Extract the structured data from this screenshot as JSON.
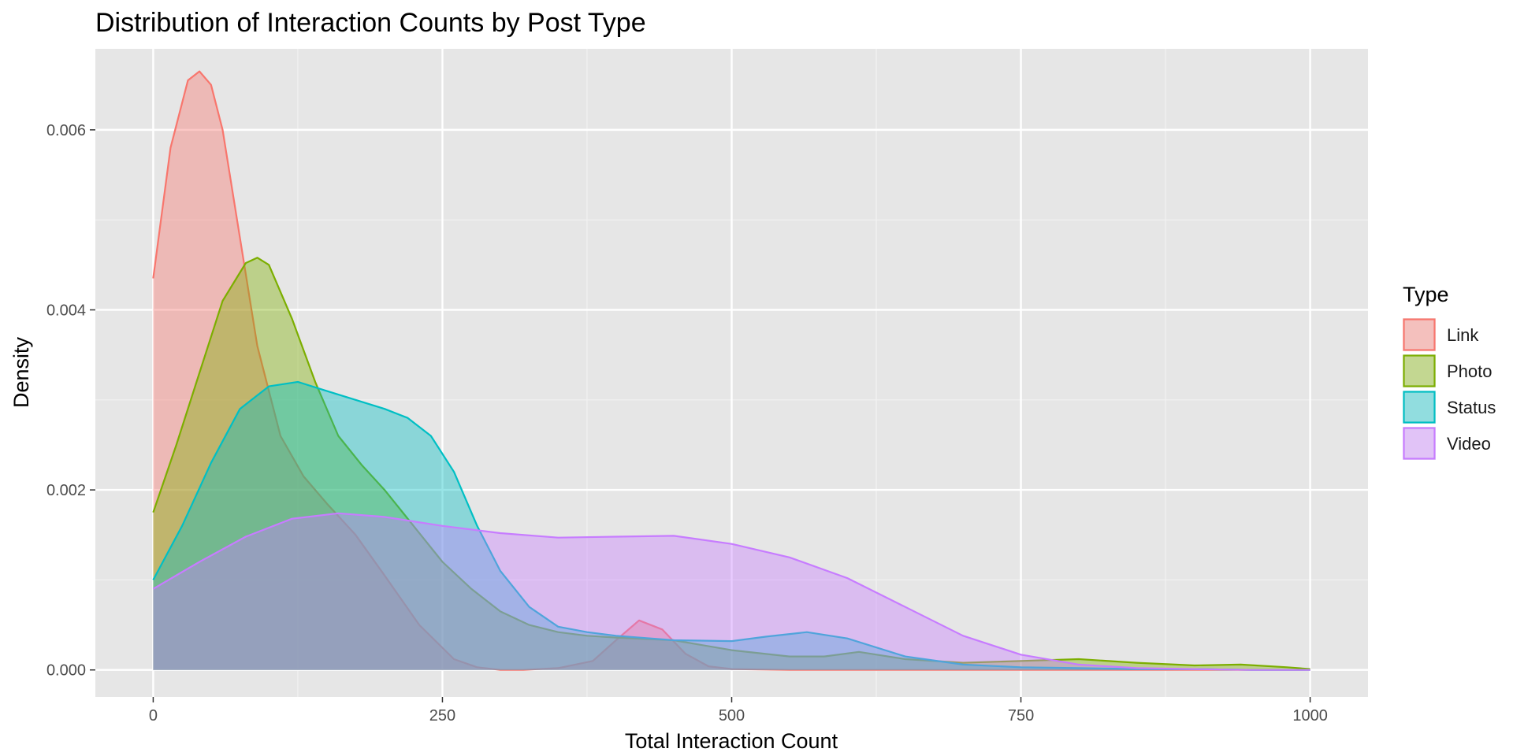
{
  "chart_data": {
    "type": "area",
    "subtype": "density",
    "title": "Distribution of Interaction Counts by Post Type",
    "xlabel": "Total Interaction Count",
    "ylabel": "Density",
    "xlim": [
      -50,
      1050
    ],
    "ylim": [
      -0.0003,
      0.0069
    ],
    "x_ticks": [
      0,
      250,
      500,
      750,
      1000
    ],
    "x_tick_labels": [
      "0",
      "250",
      "500",
      "750",
      "1000"
    ],
    "y_ticks": [
      0,
      0.002,
      0.004,
      0.006
    ],
    "y_tick_labels": [
      "0.000",
      "0.002",
      "0.004",
      "0.006"
    ],
    "grid": true,
    "legend_title": "Type",
    "legend_position": "right",
    "series": [
      {
        "name": "Link",
        "color": "#F8766D",
        "x": [
          0,
          15,
          30,
          40,
          50,
          60,
          75,
          90,
          110,
          130,
          150,
          175,
          200,
          230,
          260,
          280,
          300,
          320,
          350,
          380,
          400,
          420,
          440,
          460,
          480,
          500,
          550,
          600,
          700,
          800,
          900,
          1000
        ],
        "y": [
          0.00435,
          0.0058,
          0.00655,
          0.00665,
          0.0065,
          0.006,
          0.0048,
          0.0036,
          0.0026,
          0.00215,
          0.00185,
          0.0015,
          0.00105,
          0.0005,
          0.00012,
          3e-05,
          0.0,
          0.0,
          2e-05,
          0.0001,
          0.00033,
          0.00055,
          0.00045,
          0.00018,
          4e-05,
          1e-05,
          0.0,
          0.0,
          0.0,
          0.0,
          0.0,
          0.0
        ]
      },
      {
        "name": "Photo",
        "color": "#7CAE00",
        "x": [
          0,
          20,
          40,
          60,
          80,
          90,
          100,
          120,
          140,
          160,
          180,
          200,
          225,
          250,
          275,
          300,
          325,
          350,
          375,
          400,
          450,
          500,
          550,
          580,
          610,
          650,
          700,
          750,
          800,
          850,
          900,
          940,
          980,
          1000
        ],
        "y": [
          0.00175,
          0.0025,
          0.0033,
          0.0041,
          0.00452,
          0.00458,
          0.0045,
          0.0039,
          0.0032,
          0.0026,
          0.00228,
          0.002,
          0.0016,
          0.0012,
          0.0009,
          0.00065,
          0.0005,
          0.00042,
          0.00038,
          0.00036,
          0.00033,
          0.00022,
          0.00015,
          0.00015,
          0.0002,
          0.00012,
          8e-05,
          0.0001,
          0.00012,
          8e-05,
          5e-05,
          6e-05,
          3e-05,
          1e-05
        ]
      },
      {
        "name": "Status",
        "color": "#00BFC4",
        "x": [
          0,
          25,
          50,
          75,
          100,
          125,
          150,
          175,
          200,
          220,
          240,
          260,
          280,
          300,
          325,
          350,
          375,
          400,
          450,
          500,
          530,
          565,
          600,
          650,
          700,
          750,
          800,
          850,
          900,
          950,
          1000
        ],
        "y": [
          0.001,
          0.0016,
          0.0023,
          0.0029,
          0.00315,
          0.0032,
          0.0031,
          0.003,
          0.0029,
          0.0028,
          0.0026,
          0.0022,
          0.0016,
          0.0011,
          0.0007,
          0.00048,
          0.00042,
          0.00038,
          0.00033,
          0.00032,
          0.00037,
          0.00042,
          0.00035,
          0.00015,
          6e-05,
          3e-05,
          2e-05,
          1e-05,
          1e-05,
          0.0,
          0.0
        ]
      },
      {
        "name": "Video",
        "color": "#C77CFF",
        "x": [
          0,
          40,
          80,
          120,
          160,
          200,
          250,
          300,
          350,
          400,
          450,
          500,
          550,
          600,
          650,
          700,
          750,
          800,
          850,
          900,
          950,
          1000
        ],
        "y": [
          0.0009,
          0.0012,
          0.00148,
          0.00168,
          0.00174,
          0.0017,
          0.0016,
          0.00152,
          0.00147,
          0.00148,
          0.00149,
          0.0014,
          0.00125,
          0.00102,
          0.0007,
          0.00038,
          0.00017,
          6e-05,
          2e-05,
          1e-05,
          0.0,
          0.0
        ]
      }
    ]
  }
}
